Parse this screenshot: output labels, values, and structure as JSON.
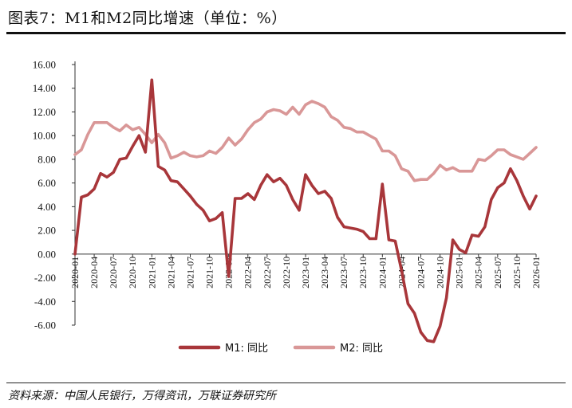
{
  "figure": {
    "title": "图表7：M1和M2同比增速（单位：%）",
    "source": "资料来源：中国人民银行，万得资讯，万联证券研究所"
  },
  "chart_data": {
    "type": "line",
    "title": "图表7：M1和M2同比增速（单位：%）",
    "xlabel": "",
    "ylabel": "",
    "ylim": [
      -6,
      16
    ],
    "ytick_step": 2,
    "ytick_labels": [
      "-6.00",
      "-4.00",
      "-2.00",
      "0.00",
      "2.00",
      "4.00",
      "6.00",
      "8.00",
      "10.00",
      "12.00",
      "14.00",
      "16.00"
    ],
    "x": [
      "2020-01",
      "2020-02",
      "2020-03",
      "2020-04",
      "2020-05",
      "2020-06",
      "2020-07",
      "2020-08",
      "2020-09",
      "2020-10",
      "2020-11",
      "2020-12",
      "2021-01",
      "2021-02",
      "2021-03",
      "2021-04",
      "2021-05",
      "2021-06",
      "2021-07",
      "2021-08",
      "2021-09",
      "2021-10",
      "2021-11",
      "2021-12",
      "2022-01",
      "2022-02",
      "2022-03",
      "2022-04",
      "2022-05",
      "2022-06",
      "2022-07",
      "2022-08",
      "2022-09",
      "2022-10",
      "2022-11",
      "2022-12",
      "2023-01",
      "2023-02",
      "2023-03",
      "2023-04",
      "2023-05",
      "2023-06",
      "2023-07",
      "2023-08",
      "2023-09",
      "2023-10",
      "2023-11",
      "2023-12",
      "2024-01",
      "2024-02",
      "2024-03",
      "2024-04",
      "2024-05",
      "2024-06",
      "2024-07",
      "2024-08",
      "2024-09",
      "2024-10",
      "2024-11",
      "2024-12",
      "2025-01",
      "2025-02",
      "2025-03",
      "2025-04",
      "2025-05",
      "2025-06",
      "2025-07",
      "2025-08",
      "2025-09",
      "2025-10",
      "2025-11",
      "2025-12",
      "2026-01"
    ],
    "x_tick_labels": [
      "2020-01",
      "2020-04",
      "2020-07",
      "2020-10",
      "2021-01",
      "2021-04",
      "2021-07",
      "2021-10",
      "2022-01",
      "2022-04",
      "2022-07",
      "2022-10",
      "2023-01",
      "2023-04",
      "2023-07",
      "2023-10",
      "2024-01",
      "2024-04",
      "2024-07",
      "2024-10",
      "2025-01",
      "2025-04",
      "2025-07",
      "2025-10",
      "2026-01"
    ],
    "series": [
      {
        "name": "M1: 同比",
        "color": "#a8363a",
        "values": [
          0.0,
          4.8,
          5.0,
          5.5,
          6.8,
          6.5,
          6.9,
          8.0,
          8.1,
          9.1,
          10.0,
          8.6,
          14.7,
          7.4,
          7.1,
          6.2,
          6.1,
          5.5,
          4.9,
          4.2,
          3.7,
          2.8,
          3.0,
          3.5,
          -1.9,
          4.7,
          4.7,
          5.1,
          4.6,
          5.8,
          6.7,
          6.1,
          6.4,
          5.8,
          4.6,
          3.7,
          6.7,
          5.8,
          5.1,
          5.3,
          4.7,
          3.1,
          2.3,
          2.2,
          2.1,
          1.9,
          1.3,
          1.3,
          5.9,
          1.2,
          1.1,
          -1.4,
          -4.2,
          -5.0,
          -6.6,
          -7.3,
          -7.4,
          -6.1,
          -3.7,
          1.2,
          0.4,
          0.1,
          1.6,
          1.5,
          2.3,
          4.6,
          5.6,
          6.0,
          7.2,
          6.2,
          4.9,
          3.8,
          4.9
        ]
      },
      {
        "name": "M2: 同比",
        "color": "#d99797",
        "values": [
          8.4,
          8.8,
          10.1,
          11.1,
          11.1,
          11.1,
          10.7,
          10.4,
          10.9,
          10.5,
          10.7,
          10.1,
          9.4,
          10.1,
          9.4,
          8.1,
          8.3,
          8.6,
          8.3,
          8.2,
          8.3,
          8.7,
          8.5,
          9.0,
          9.8,
          9.2,
          9.7,
          10.5,
          11.1,
          11.4,
          12.0,
          12.2,
          12.1,
          11.8,
          12.4,
          11.8,
          12.6,
          12.9,
          12.7,
          12.4,
          11.6,
          11.3,
          10.7,
          10.6,
          10.3,
          10.3,
          10.0,
          9.7,
          8.7,
          8.7,
          8.3,
          7.2,
          7.0,
          6.2,
          6.3,
          6.3,
          6.8,
          7.5,
          7.1,
          7.3,
          7.0,
          7.0,
          7.0,
          8.0,
          7.9,
          8.3,
          8.8,
          8.8,
          8.4,
          8.2,
          8.0,
          8.5,
          9.0
        ]
      }
    ],
    "legend": [
      "M1: 同比",
      "M2: 同比"
    ],
    "legend_position": "bottom-center",
    "grid": false
  }
}
